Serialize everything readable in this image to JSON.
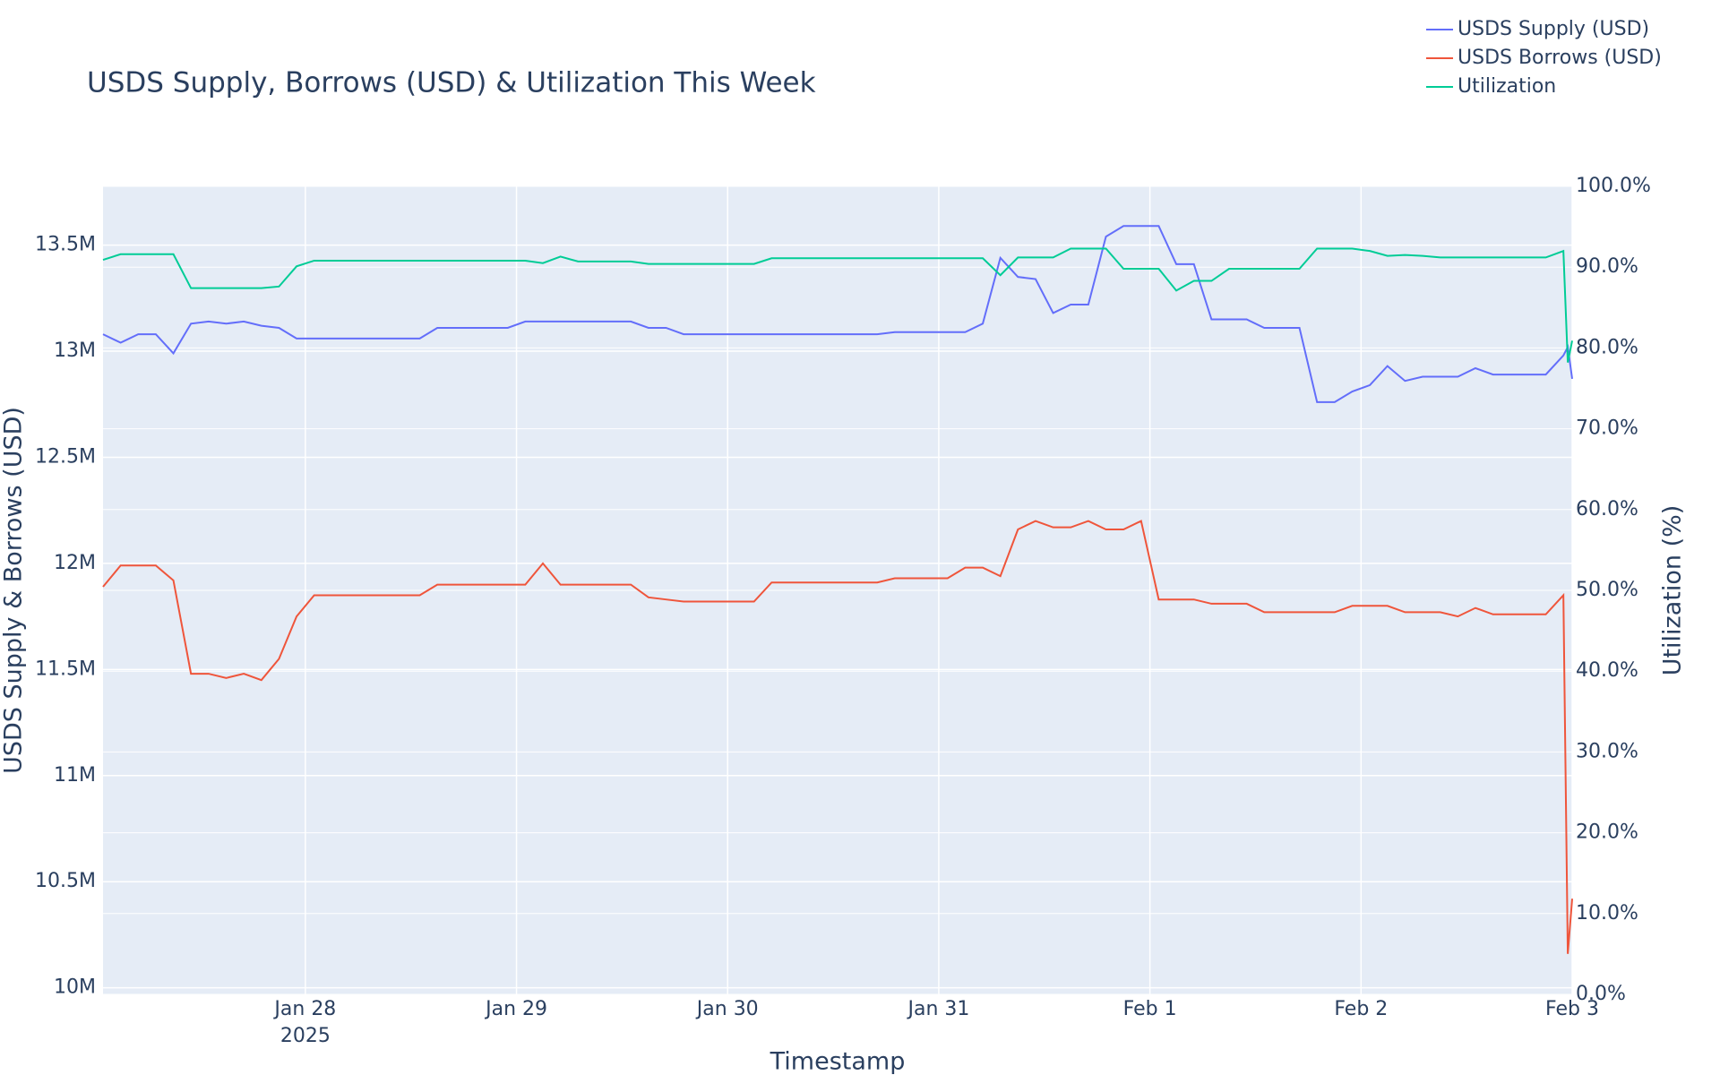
{
  "chart_data": {
    "type": "line",
    "title": "USDS Supply, Borrows (USD) & Utilization This Week",
    "x_label": "Timestamp",
    "y_label": "USDS Supply & Borrows (USD)",
    "y2_label": "Utilization (%)",
    "x": [
      "2025-01-27 01:00",
      "2025-01-27 03:00",
      "2025-01-27 05:00",
      "2025-01-27 07:00",
      "2025-01-27 09:00",
      "2025-01-27 11:00",
      "2025-01-27 13:00",
      "2025-01-27 15:00",
      "2025-01-27 17:00",
      "2025-01-27 19:00",
      "2025-01-27 21:00",
      "2025-01-27 23:00",
      "2025-01-28 01:00",
      "2025-01-28 03:00",
      "2025-01-28 05:00",
      "2025-01-28 07:00",
      "2025-01-28 09:00",
      "2025-01-28 11:00",
      "2025-01-28 13:00",
      "2025-01-28 15:00",
      "2025-01-28 17:00",
      "2025-01-28 19:00",
      "2025-01-28 21:00",
      "2025-01-28 23:00",
      "2025-01-29 01:00",
      "2025-01-29 03:00",
      "2025-01-29 05:00",
      "2025-01-29 07:00",
      "2025-01-29 09:00",
      "2025-01-29 11:00",
      "2025-01-29 13:00",
      "2025-01-29 15:00",
      "2025-01-29 17:00",
      "2025-01-29 19:00",
      "2025-01-29 21:00",
      "2025-01-29 23:00",
      "2025-01-30 01:00",
      "2025-01-30 03:00",
      "2025-01-30 05:00",
      "2025-01-30 07:00",
      "2025-01-30 09:00",
      "2025-01-30 11:00",
      "2025-01-30 13:00",
      "2025-01-30 15:00",
      "2025-01-30 17:00",
      "2025-01-30 19:00",
      "2025-01-30 21:00",
      "2025-01-30 23:00",
      "2025-01-31 01:00",
      "2025-01-31 03:00",
      "2025-01-31 05:00",
      "2025-01-31 07:00",
      "2025-01-31 09:00",
      "2025-01-31 11:00",
      "2025-01-31 13:00",
      "2025-01-31 15:00",
      "2025-01-31 17:00",
      "2025-01-31 19:00",
      "2025-01-31 21:00",
      "2025-01-31 23:00",
      "2025-02-01 01:00",
      "2025-02-01 03:00",
      "2025-02-01 05:00",
      "2025-02-01 07:00",
      "2025-02-01 09:00",
      "2025-02-01 11:00",
      "2025-02-01 13:00",
      "2025-02-01 15:00",
      "2025-02-01 17:00",
      "2025-02-01 19:00",
      "2025-02-01 21:00",
      "2025-02-01 23:00",
      "2025-02-02 01:00",
      "2025-02-02 03:00",
      "2025-02-02 05:00",
      "2025-02-02 07:00",
      "2025-02-02 09:00",
      "2025-02-02 11:00",
      "2025-02-02 13:00",
      "2025-02-02 15:00",
      "2025-02-02 17:00",
      "2025-02-02 19:00",
      "2025-02-02 21:00",
      "2025-02-02 23:00",
      "2025-02-02 23:30",
      "2025-02-03 00:00"
    ],
    "series": [
      {
        "name": "USDS Supply (USD)",
        "color": "#636efa",
        "axis": "y",
        "values": [
          13080000,
          13040000,
          13080000,
          13080000,
          12990000,
          13130000,
          13140000,
          13130000,
          13140000,
          13120000,
          13110000,
          13060000,
          13060000,
          13060000,
          13060000,
          13060000,
          13060000,
          13060000,
          13060000,
          13110000,
          13110000,
          13110000,
          13110000,
          13110000,
          13140000,
          13140000,
          13140000,
          13140000,
          13140000,
          13140000,
          13140000,
          13110000,
          13110000,
          13080000,
          13080000,
          13080000,
          13080000,
          13080000,
          13080000,
          13080000,
          13080000,
          13080000,
          13080000,
          13080000,
          13080000,
          13090000,
          13090000,
          13090000,
          13090000,
          13090000,
          13130000,
          13440000,
          13350000,
          13340000,
          13180000,
          13220000,
          13220000,
          13540000,
          13590000,
          13590000,
          13590000,
          13410000,
          13410000,
          13150000,
          13150000,
          13150000,
          13110000,
          13110000,
          13110000,
          12760000,
          12760000,
          12810000,
          12840000,
          12930000,
          12860000,
          12880000,
          12880000,
          12880000,
          12920000,
          12890000,
          12890000,
          12890000,
          12890000,
          12980000,
          13020000,
          12870000
        ]
      },
      {
        "name": "USDS Borrows (USD)",
        "color": "#ef553b",
        "axis": "y",
        "values": [
          11890000,
          11990000,
          11990000,
          11990000,
          11920000,
          11480000,
          11480000,
          11460000,
          11480000,
          11450000,
          11550000,
          11750000,
          11850000,
          11850000,
          11850000,
          11850000,
          11850000,
          11850000,
          11850000,
          11900000,
          11900000,
          11900000,
          11900000,
          11900000,
          11900000,
          12000000,
          11900000,
          11900000,
          11900000,
          11900000,
          11900000,
          11840000,
          11830000,
          11820000,
          11820000,
          11820000,
          11820000,
          11820000,
          11910000,
          11910000,
          11910000,
          11910000,
          11910000,
          11910000,
          11910000,
          11930000,
          11930000,
          11930000,
          11930000,
          11980000,
          11980000,
          11940000,
          12160000,
          12200000,
          12170000,
          12170000,
          12200000,
          12160000,
          12160000,
          12200000,
          11830000,
          11830000,
          11830000,
          11810000,
          11810000,
          11810000,
          11770000,
          11770000,
          11770000,
          11770000,
          11770000,
          11800000,
          11800000,
          11800000,
          11770000,
          11770000,
          11770000,
          11750000,
          11790000,
          11760000,
          11760000,
          11760000,
          11760000,
          11850000,
          10160000,
          10420000
        ]
      },
      {
        "name": "Utilization",
        "color": "#00cc96",
        "axis": "y2",
        "values": [
          90.9,
          91.6,
          91.6,
          91.6,
          91.6,
          87.4,
          87.4,
          87.4,
          87.4,
          87.4,
          87.6,
          90.1,
          90.8,
          90.8,
          90.8,
          90.8,
          90.8,
          90.8,
          90.8,
          90.8,
          90.8,
          90.8,
          90.8,
          90.8,
          90.8,
          90.5,
          91.3,
          90.7,
          90.7,
          90.7,
          90.7,
          90.4,
          90.4,
          90.4,
          90.4,
          90.4,
          90.4,
          90.4,
          91.1,
          91.1,
          91.1,
          91.1,
          91.1,
          91.1,
          91.1,
          91.1,
          91.1,
          91.1,
          91.1,
          91.1,
          91.1,
          89.0,
          91.2,
          91.2,
          91.2,
          92.3,
          92.3,
          92.3,
          89.8,
          89.8,
          89.8,
          87.1,
          88.3,
          88.3,
          89.8,
          89.8,
          89.8,
          89.8,
          89.8,
          92.3,
          92.3,
          92.3,
          92.0,
          91.4,
          91.5,
          91.4,
          91.2,
          91.2,
          91.2,
          91.2,
          91.2,
          91.2,
          91.2,
          92.0,
          78.2,
          80.9
        ]
      }
    ],
    "xlim": [
      "2025-01-27 01:00",
      "2025-02-03 00:00"
    ],
    "xticks": [
      {
        "value": "2025-01-28 00:00",
        "label": "Jan 28"
      },
      {
        "value": "2025-01-29 00:00",
        "label": "Jan 29"
      },
      {
        "value": "2025-01-30 00:00",
        "label": "Jan 30"
      },
      {
        "value": "2025-01-31 00:00",
        "label": "Jan 31"
      },
      {
        "value": "2025-02-01 00:00",
        "label": "Feb 1"
      },
      {
        "value": "2025-02-02 00:00",
        "label": "Feb 2"
      },
      {
        "value": "2025-02-03 00:00",
        "label": "Feb 3"
      }
    ],
    "x_year_label": "2025",
    "ylim": [
      9969000,
      13777000
    ],
    "yticks": [
      {
        "value": 10000000,
        "label": "10M"
      },
      {
        "value": 10500000,
        "label": "10.5M"
      },
      {
        "value": 11000000,
        "label": "11M"
      },
      {
        "value": 11500000,
        "label": "11.5M"
      },
      {
        "value": 12000000,
        "label": "12M"
      },
      {
        "value": 12500000,
        "label": "12.5M"
      },
      {
        "value": 13000000,
        "label": "13M"
      },
      {
        "value": 13500000,
        "label": "13.5M"
      }
    ],
    "y2lim": [
      0,
      100
    ],
    "y2ticks": [
      {
        "value": 0,
        "label": "0.0%"
      },
      {
        "value": 10,
        "label": "10.0%"
      },
      {
        "value": 20,
        "label": "20.0%"
      },
      {
        "value": 30,
        "label": "30.0%"
      },
      {
        "value": 40,
        "label": "40.0%"
      },
      {
        "value": 50,
        "label": "50.0%"
      },
      {
        "value": 60,
        "label": "60.0%"
      },
      {
        "value": 70,
        "label": "70.0%"
      },
      {
        "value": 80,
        "label": "80.0%"
      },
      {
        "value": 90,
        "label": "90.0%"
      },
      {
        "value": 100,
        "label": "100.0%"
      }
    ],
    "grid": true,
    "legend_position": "top-right",
    "plot_background": "#e5ecf6"
  }
}
